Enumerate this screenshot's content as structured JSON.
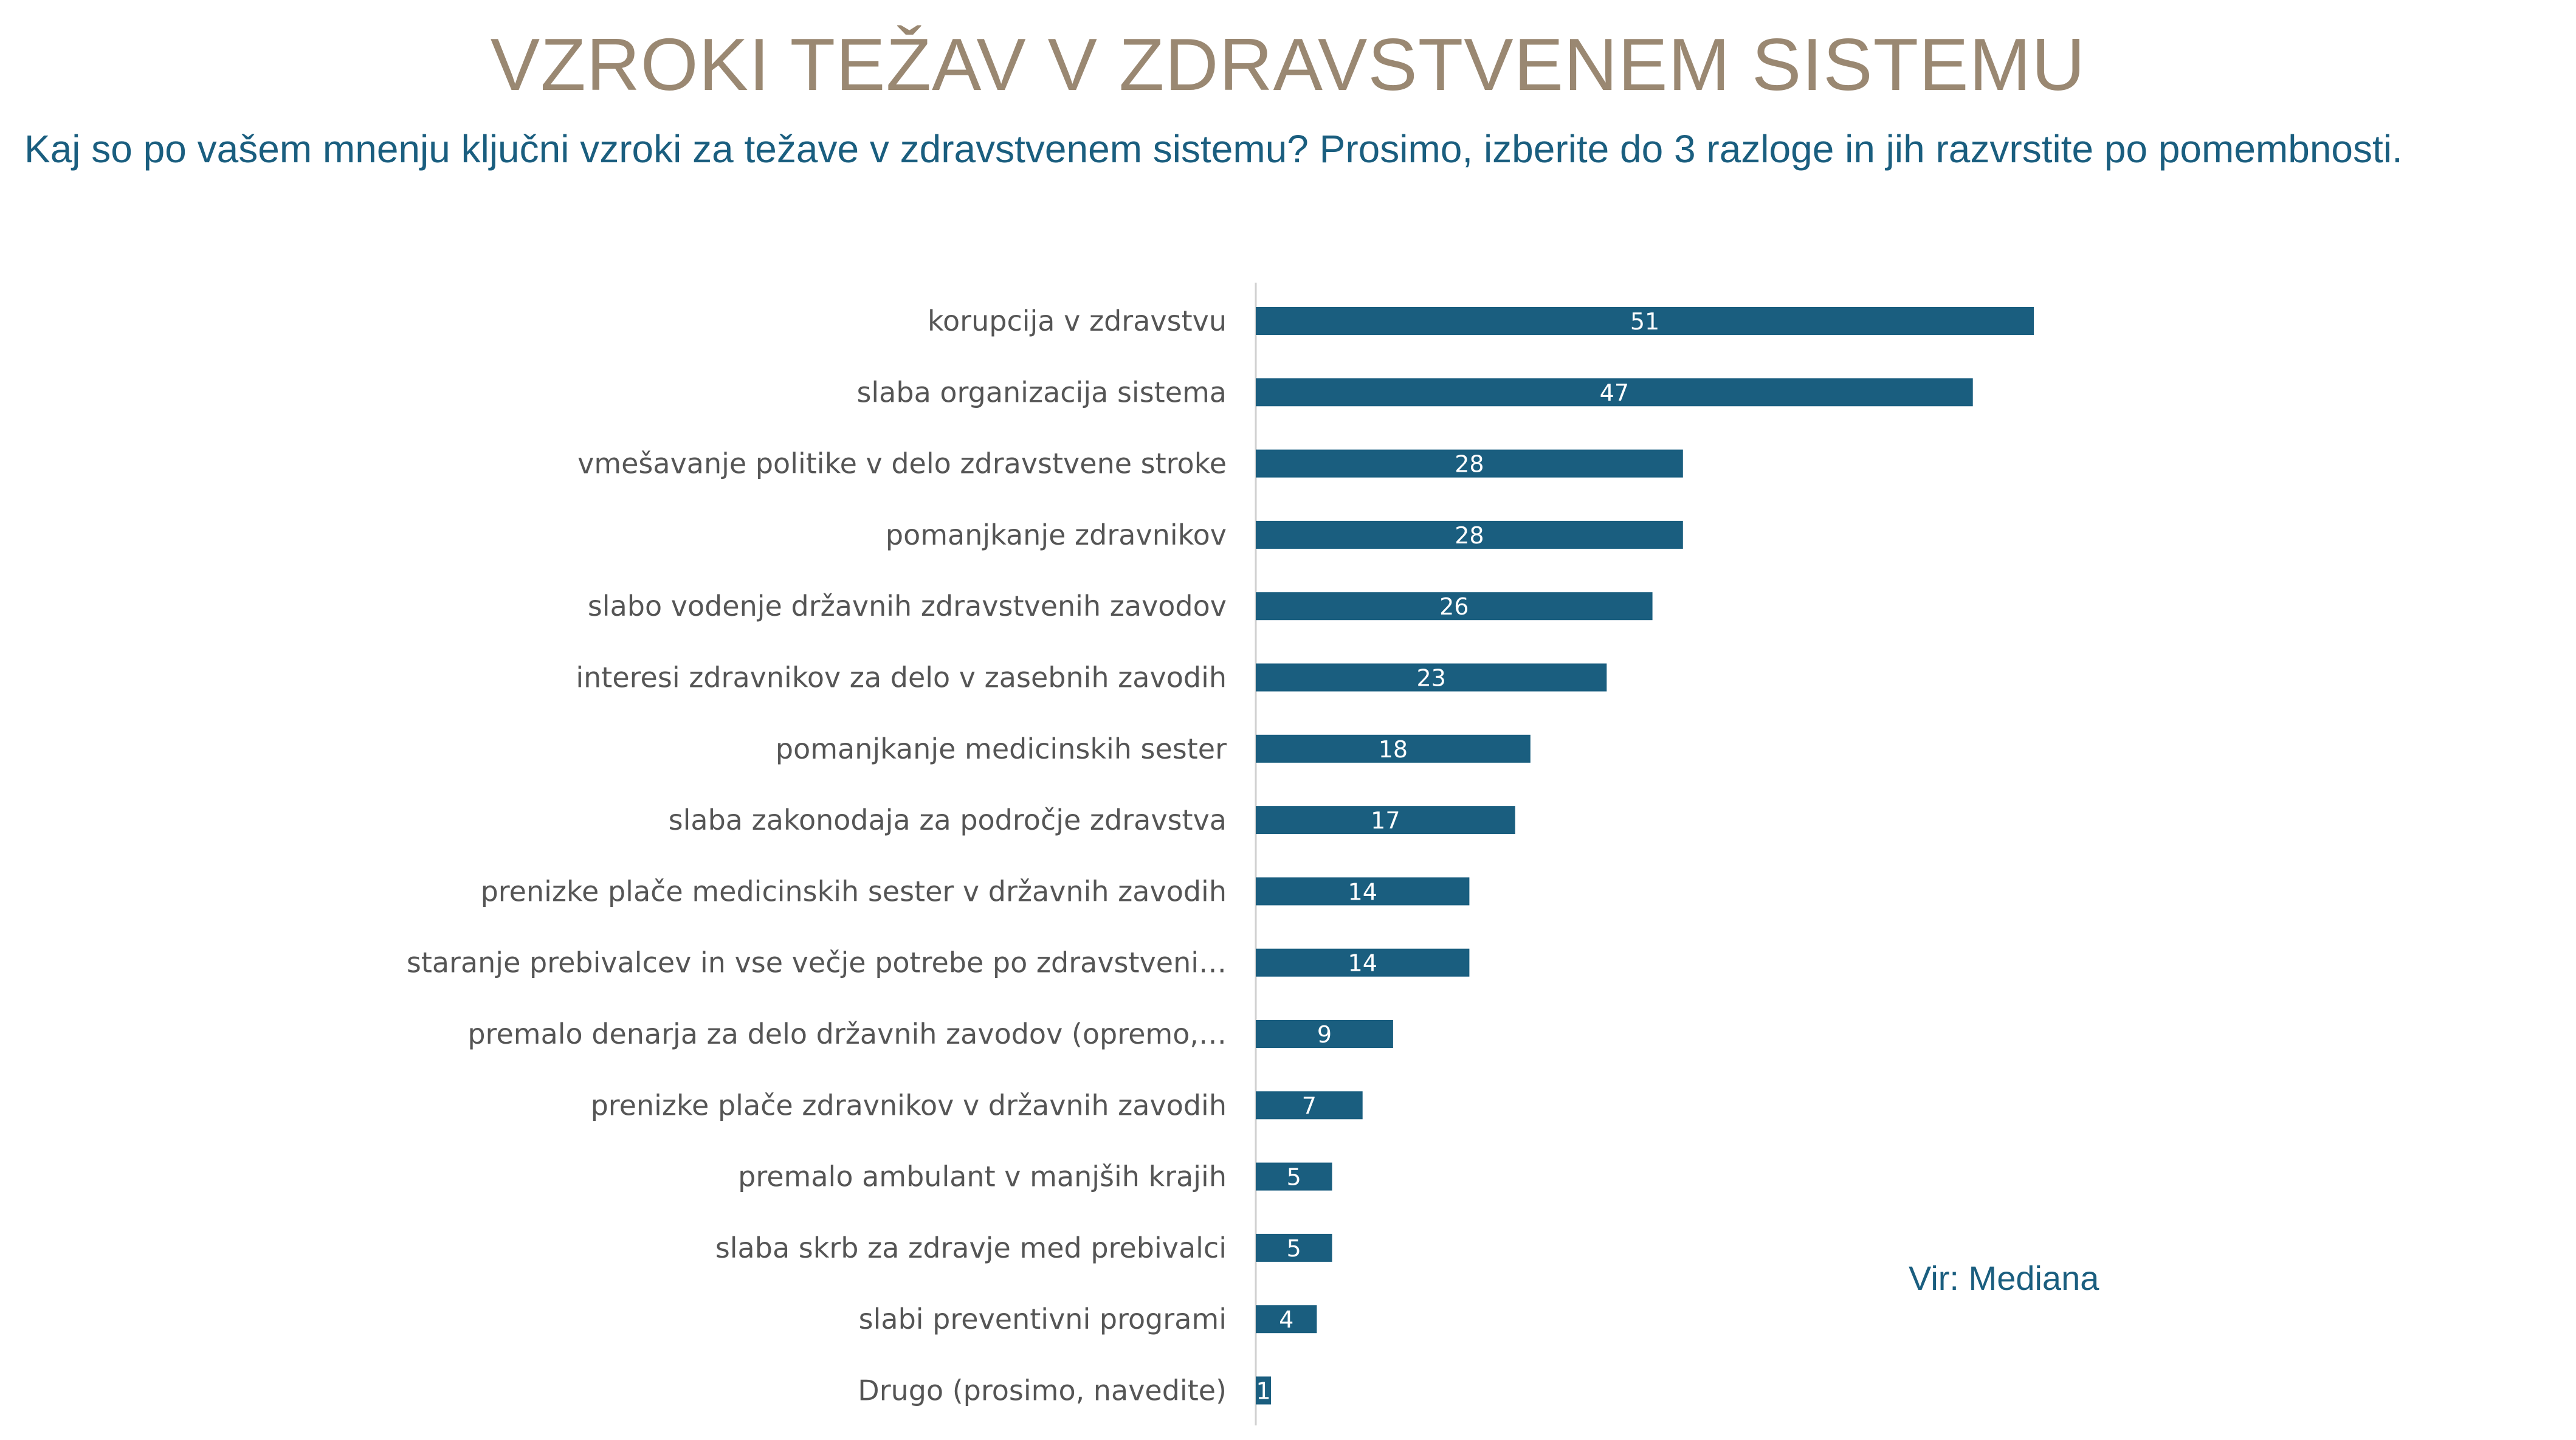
{
  "title": "VZROKI TEŽAV V ZDRAVSTVENEM SISTEMU",
  "subtitle": "Kaj so po vašem mnenju ključni vzroki za težave v zdravstvenem sistemu? Prosimo, izberite do 3 razloge in jih razvrstite po pomembnosti.",
  "source": "Vir: Mediana",
  "colors": {
    "title": "#9a8872",
    "subtitle": "#1a5e7f",
    "bar": "#1a5e7f",
    "axis": "#d0d0d0"
  },
  "chart_data": {
    "type": "bar",
    "orientation": "horizontal",
    "categories": [
      "korupcija v zdravstvu",
      "slaba organizacija sistema",
      "vmešavanje politike v delo zdravstvene stroke",
      "pomanjkanje zdravnikov",
      "slabo vodenje državnih zdravstvenih zavodov",
      "interesi zdravnikov za delo v zasebnih zavodih",
      "pomanjkanje medicinskih sester",
      "slaba zakonodaja za področje zdravstva",
      "prenizke plače medicinskih sester v državnih zavodih",
      "staranje prebivalcev in vse večje potrebe po zdravstveni…",
      "premalo denarja za delo državnih zavodov (opremo,…",
      "prenizke plače zdravnikov v državnih zavodih",
      "premalo ambulant v manjših krajih",
      "slaba skrb za zdravje med prebivalci",
      "slabi preventivni programi",
      "Drugo (prosimo, navedite)"
    ],
    "values": [
      51,
      47,
      28,
      28,
      26,
      23,
      18,
      17,
      14,
      14,
      9,
      7,
      5,
      5,
      4,
      1
    ],
    "data_labels": true,
    "grid": false,
    "legend": "none"
  }
}
